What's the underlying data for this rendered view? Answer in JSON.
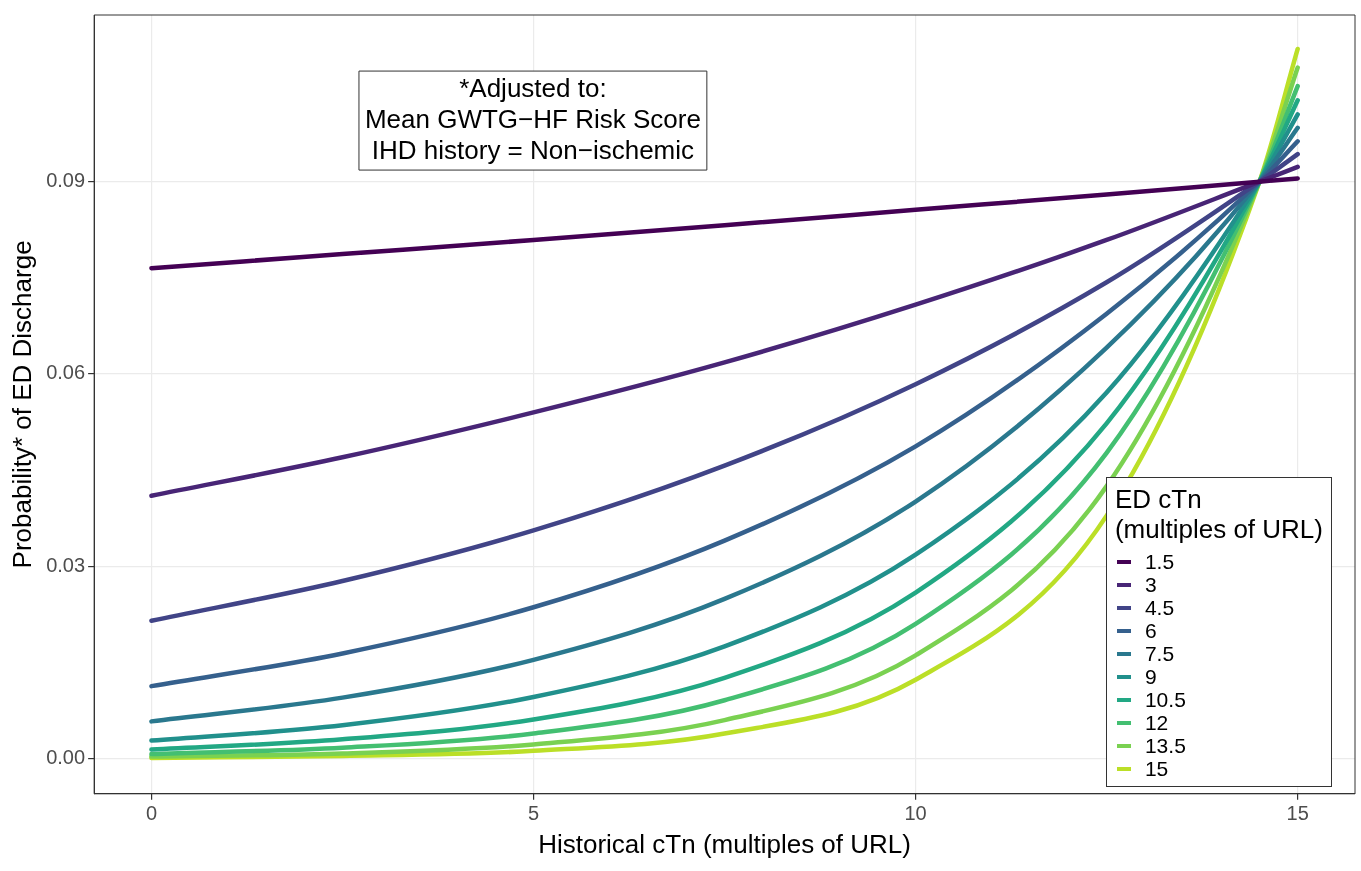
{
  "chart_data": {
    "type": "line",
    "xlabel": "Historical cTn (multiples of URL)",
    "ylabel": "Probability* of ED Discharge",
    "legend_title": "ED cTn\n(multiples of URL)",
    "annotations": [
      "*Adjusted to:",
      "Mean GWTG−HF Risk Score",
      "IHD history = Non−ischemic"
    ],
    "x": [
      0,
      2.5,
      5,
      7.5,
      10,
      12.5,
      14.5,
      15
    ],
    "series": [
      {
        "name": "1.5",
        "color": "#440154",
        "values": [
          0.0765,
          0.0787,
          0.0809,
          0.0832,
          0.0856,
          0.088,
          0.09,
          0.0905
        ]
      },
      {
        "name": "3",
        "color": "#482576",
        "values": [
          0.041,
          0.047,
          0.054,
          0.0618,
          0.0708,
          0.0809,
          0.09,
          0.0923
        ]
      },
      {
        "name": "4.5",
        "color": "#414487",
        "values": [
          0.0215,
          0.0277,
          0.0356,
          0.0457,
          0.0584,
          0.0743,
          0.09,
          0.0943
        ]
      },
      {
        "name": "6",
        "color": "#35608d",
        "values": [
          0.0113,
          0.0164,
          0.0236,
          0.034,
          0.0487,
          0.0694,
          0.09,
          0.0963
        ]
      },
      {
        "name": "7.5",
        "color": "#2a788e",
        "values": [
          0.0058,
          0.0095,
          0.0154,
          0.0249,
          0.0401,
          0.0641,
          0.09,
          0.0984
        ]
      },
      {
        "name": "9",
        "color": "#21908c",
        "values": [
          0.0028,
          0.0052,
          0.0096,
          0.0175,
          0.0318,
          0.0571,
          0.09,
          0.1005
        ]
      },
      {
        "name": "10.5",
        "color": "#22a884",
        "values": [
          0.0014,
          0.003,
          0.0061,
          0.0126,
          0.0259,
          0.0523,
          0.09,
          0.1027
        ]
      },
      {
        "name": "12",
        "color": "#43bf71",
        "values": [
          0.0007,
          0.0017,
          0.0039,
          0.0091,
          0.021,
          0.0477,
          0.09,
          0.1049
        ]
      },
      {
        "name": "13.5",
        "color": "#7ad151",
        "values": [
          0.0003,
          0.0008,
          0.0022,
          0.006,
          0.0161,
          0.0425,
          0.09,
          0.1078
        ]
      },
      {
        "name": "15",
        "color": "#bbdf27",
        "values": [
          0.0001,
          0.0004,
          0.0012,
          0.0039,
          0.0123,
          0.0379,
          0.09,
          0.1107
        ]
      }
    ],
    "xlim": [
      -0.75,
      15.75
    ],
    "xticks": [
      0,
      5,
      10,
      15
    ],
    "ylim": [
      -0.0055,
      0.116
    ],
    "yticks": [
      {
        "value": 0,
        "label": "0.00"
      },
      {
        "value": 0.03,
        "label": "0.03"
      },
      {
        "value": 0.06,
        "label": "0.06"
      },
      {
        "value": 0.09,
        "label": "0.09"
      }
    ],
    "grid": true,
    "legend": "bottom right",
    "marker": "none",
    "line_style": "solid"
  }
}
